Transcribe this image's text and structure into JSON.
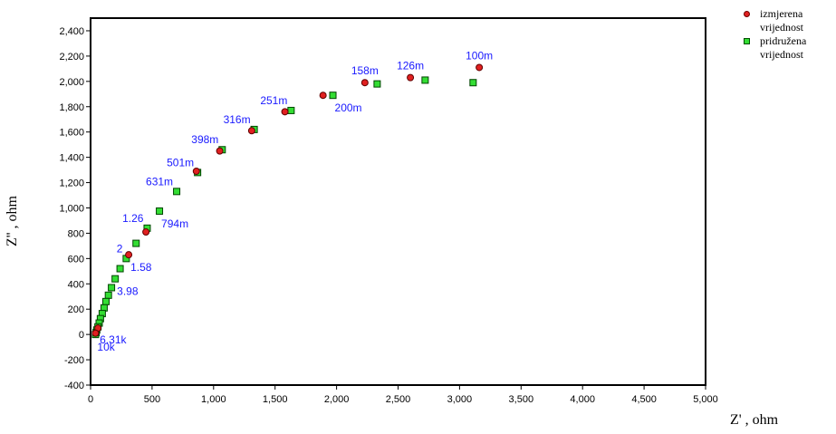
{
  "chart_data": {
    "type": "scatter",
    "xlabel": "Z' , ohm",
    "ylabel": "Z'' , ohm",
    "xlim": [
      0,
      5000
    ],
    "ylim": [
      -400,
      2500
    ],
    "grid": false,
    "legend_position": "top-right",
    "x_ticks": [
      0,
      500,
      1000,
      1500,
      2000,
      2500,
      3000,
      3500,
      4000,
      4500,
      5000
    ],
    "x_tick_labels": [
      "0",
      "500",
      "1,000",
      "1,500",
      "2,000",
      "2,500",
      "3,000",
      "3,500",
      "4,000",
      "4,500",
      "5,000"
    ],
    "y_ticks": [
      -400,
      -200,
      0,
      200,
      400,
      600,
      800,
      1000,
      1200,
      1400,
      1600,
      1800,
      2000,
      2200,
      2400
    ],
    "y_tick_labels": [
      "-400",
      "-200",
      "0",
      "200",
      "400",
      "600",
      "800",
      "1,000",
      "1,200",
      "1,400",
      "1,600",
      "1,800",
      "2,000",
      "2,200",
      "2,400"
    ],
    "series": [
      {
        "name": "izmjerena vrijednost",
        "marker": "circle",
        "color": "#e02020",
        "points": [
          [
            3160,
            2110
          ],
          [
            2600,
            2030
          ],
          [
            2230,
            1990
          ],
          [
            1890,
            1890
          ],
          [
            1580,
            1760
          ],
          [
            1310,
            1610
          ],
          [
            1050,
            1450
          ],
          [
            860,
            1290
          ],
          [
            450,
            810
          ],
          [
            310,
            630
          ],
          [
            60,
            50
          ],
          [
            40,
            10
          ]
        ]
      },
      {
        "name": "pridružena vrijednost",
        "marker": "square",
        "color": "#33dd33",
        "points": [
          [
            3110,
            1990
          ],
          [
            2720,
            2010
          ],
          [
            2330,
            1980
          ],
          [
            1970,
            1890
          ],
          [
            1630,
            1770
          ],
          [
            1330,
            1620
          ],
          [
            1070,
            1460
          ],
          [
            870,
            1280
          ],
          [
            700,
            1130
          ],
          [
            560,
            975
          ],
          [
            460,
            840
          ],
          [
            370,
            720
          ],
          [
            290,
            600
          ],
          [
            240,
            520
          ],
          [
            200,
            440
          ],
          [
            170,
            370
          ],
          [
            145,
            310
          ],
          [
            125,
            260
          ],
          [
            110,
            210
          ],
          [
            95,
            165
          ],
          [
            80,
            125
          ],
          [
            70,
            90
          ],
          [
            60,
            60
          ],
          [
            50,
            35
          ],
          [
            45,
            15
          ],
          [
            40,
            0
          ]
        ]
      }
    ],
    "annotations": [
      {
        "text": "100m",
        "x": 3160,
        "y": 2110,
        "anchor": "top"
      },
      {
        "text": "126m",
        "x": 2600,
        "y": 2030,
        "anchor": "top"
      },
      {
        "text": "158m",
        "x": 2230,
        "y": 1990,
        "anchor": "top"
      },
      {
        "text": "200m",
        "x": 1970,
        "y": 1890,
        "anchor": "below"
      },
      {
        "text": "251m",
        "x": 1630,
        "y": 1770,
        "anchor": "left-top"
      },
      {
        "text": "316m",
        "x": 1330,
        "y": 1620,
        "anchor": "left-top"
      },
      {
        "text": "398m",
        "x": 1070,
        "y": 1460,
        "anchor": "left-top"
      },
      {
        "text": "501m",
        "x": 870,
        "y": 1280,
        "anchor": "left-top"
      },
      {
        "text": "631m",
        "x": 700,
        "y": 1130,
        "anchor": "left-top"
      },
      {
        "text": "794m",
        "x": 560,
        "y": 975,
        "anchor": "below"
      },
      {
        "text": "1.26",
        "x": 460,
        "y": 840,
        "anchor": "left-top"
      },
      {
        "text": "2",
        "x": 290,
        "y": 600,
        "anchor": "left-top"
      },
      {
        "text": "1.58",
        "x": 310,
        "y": 630,
        "anchor": "below"
      },
      {
        "text": "3.98",
        "x": 200,
        "y": 440,
        "anchor": "below"
      },
      {
        "text": "6.31k",
        "x": 60,
        "y": 60,
        "anchor": "below"
      },
      {
        "text": "10k",
        "x": 40,
        "y": 0,
        "anchor": "below"
      }
    ]
  },
  "legend": {
    "items": [
      {
        "label_line1": "izmjerena",
        "label_line2": "vrijednost"
      },
      {
        "label_line1": "pridružena",
        "label_line2": "vrijednost"
      }
    ]
  },
  "axis_titles": {
    "x_main": "Z'",
    "x_sep": ",",
    "x_unit": "ohm",
    "y_main": "Z''",
    "y_sep": ",",
    "y_unit": "ohm"
  }
}
